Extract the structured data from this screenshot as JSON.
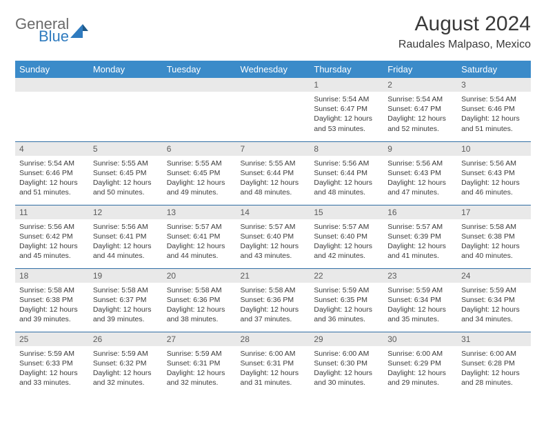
{
  "logo": {
    "word1": "General",
    "word2": "Blue",
    "word1_color": "#6a6a6a",
    "word2_color": "#2f7bbf"
  },
  "title": "August 2024",
  "location": "Raudales Malpaso, Mexico",
  "style": {
    "header_bg": "#3b8bc9",
    "header_fg": "#ffffff",
    "row_separator": "#2f6da3",
    "daynum_bg": "#e9e9e9",
    "daynum_fg": "#5a5a5a",
    "text_color": "#3a3a3a",
    "page_bg": "#ffffff",
    "title_fontsize": 30,
    "location_fontsize": 16,
    "header_fontsize": 13,
    "cell_fontsize": 10.5
  },
  "weekdays": [
    "Sunday",
    "Monday",
    "Tuesday",
    "Wednesday",
    "Thursday",
    "Friday",
    "Saturday"
  ],
  "weeks": [
    [
      null,
      null,
      null,
      null,
      {
        "n": "1",
        "sr": "5:54 AM",
        "ss": "6:47 PM",
        "dl": "12 hours and 53 minutes."
      },
      {
        "n": "2",
        "sr": "5:54 AM",
        "ss": "6:47 PM",
        "dl": "12 hours and 52 minutes."
      },
      {
        "n": "3",
        "sr": "5:54 AM",
        "ss": "6:46 PM",
        "dl": "12 hours and 51 minutes."
      }
    ],
    [
      {
        "n": "4",
        "sr": "5:54 AM",
        "ss": "6:46 PM",
        "dl": "12 hours and 51 minutes."
      },
      {
        "n": "5",
        "sr": "5:55 AM",
        "ss": "6:45 PM",
        "dl": "12 hours and 50 minutes."
      },
      {
        "n": "6",
        "sr": "5:55 AM",
        "ss": "6:45 PM",
        "dl": "12 hours and 49 minutes."
      },
      {
        "n": "7",
        "sr": "5:55 AM",
        "ss": "6:44 PM",
        "dl": "12 hours and 48 minutes."
      },
      {
        "n": "8",
        "sr": "5:56 AM",
        "ss": "6:44 PM",
        "dl": "12 hours and 48 minutes."
      },
      {
        "n": "9",
        "sr": "5:56 AM",
        "ss": "6:43 PM",
        "dl": "12 hours and 47 minutes."
      },
      {
        "n": "10",
        "sr": "5:56 AM",
        "ss": "6:43 PM",
        "dl": "12 hours and 46 minutes."
      }
    ],
    [
      {
        "n": "11",
        "sr": "5:56 AM",
        "ss": "6:42 PM",
        "dl": "12 hours and 45 minutes."
      },
      {
        "n": "12",
        "sr": "5:56 AM",
        "ss": "6:41 PM",
        "dl": "12 hours and 44 minutes."
      },
      {
        "n": "13",
        "sr": "5:57 AM",
        "ss": "6:41 PM",
        "dl": "12 hours and 44 minutes."
      },
      {
        "n": "14",
        "sr": "5:57 AM",
        "ss": "6:40 PM",
        "dl": "12 hours and 43 minutes."
      },
      {
        "n": "15",
        "sr": "5:57 AM",
        "ss": "6:40 PM",
        "dl": "12 hours and 42 minutes."
      },
      {
        "n": "16",
        "sr": "5:57 AM",
        "ss": "6:39 PM",
        "dl": "12 hours and 41 minutes."
      },
      {
        "n": "17",
        "sr": "5:58 AM",
        "ss": "6:38 PM",
        "dl": "12 hours and 40 minutes."
      }
    ],
    [
      {
        "n": "18",
        "sr": "5:58 AM",
        "ss": "6:38 PM",
        "dl": "12 hours and 39 minutes."
      },
      {
        "n": "19",
        "sr": "5:58 AM",
        "ss": "6:37 PM",
        "dl": "12 hours and 39 minutes."
      },
      {
        "n": "20",
        "sr": "5:58 AM",
        "ss": "6:36 PM",
        "dl": "12 hours and 38 minutes."
      },
      {
        "n": "21",
        "sr": "5:58 AM",
        "ss": "6:36 PM",
        "dl": "12 hours and 37 minutes."
      },
      {
        "n": "22",
        "sr": "5:59 AM",
        "ss": "6:35 PM",
        "dl": "12 hours and 36 minutes."
      },
      {
        "n": "23",
        "sr": "5:59 AM",
        "ss": "6:34 PM",
        "dl": "12 hours and 35 minutes."
      },
      {
        "n": "24",
        "sr": "5:59 AM",
        "ss": "6:34 PM",
        "dl": "12 hours and 34 minutes."
      }
    ],
    [
      {
        "n": "25",
        "sr": "5:59 AM",
        "ss": "6:33 PM",
        "dl": "12 hours and 33 minutes."
      },
      {
        "n": "26",
        "sr": "5:59 AM",
        "ss": "6:32 PM",
        "dl": "12 hours and 32 minutes."
      },
      {
        "n": "27",
        "sr": "5:59 AM",
        "ss": "6:31 PM",
        "dl": "12 hours and 32 minutes."
      },
      {
        "n": "28",
        "sr": "6:00 AM",
        "ss": "6:31 PM",
        "dl": "12 hours and 31 minutes."
      },
      {
        "n": "29",
        "sr": "6:00 AM",
        "ss": "6:30 PM",
        "dl": "12 hours and 30 minutes."
      },
      {
        "n": "30",
        "sr": "6:00 AM",
        "ss": "6:29 PM",
        "dl": "12 hours and 29 minutes."
      },
      {
        "n": "31",
        "sr": "6:00 AM",
        "ss": "6:28 PM",
        "dl": "12 hours and 28 minutes."
      }
    ]
  ],
  "labels": {
    "sunrise": "Sunrise:",
    "sunset": "Sunset:",
    "daylight": "Daylight:"
  }
}
